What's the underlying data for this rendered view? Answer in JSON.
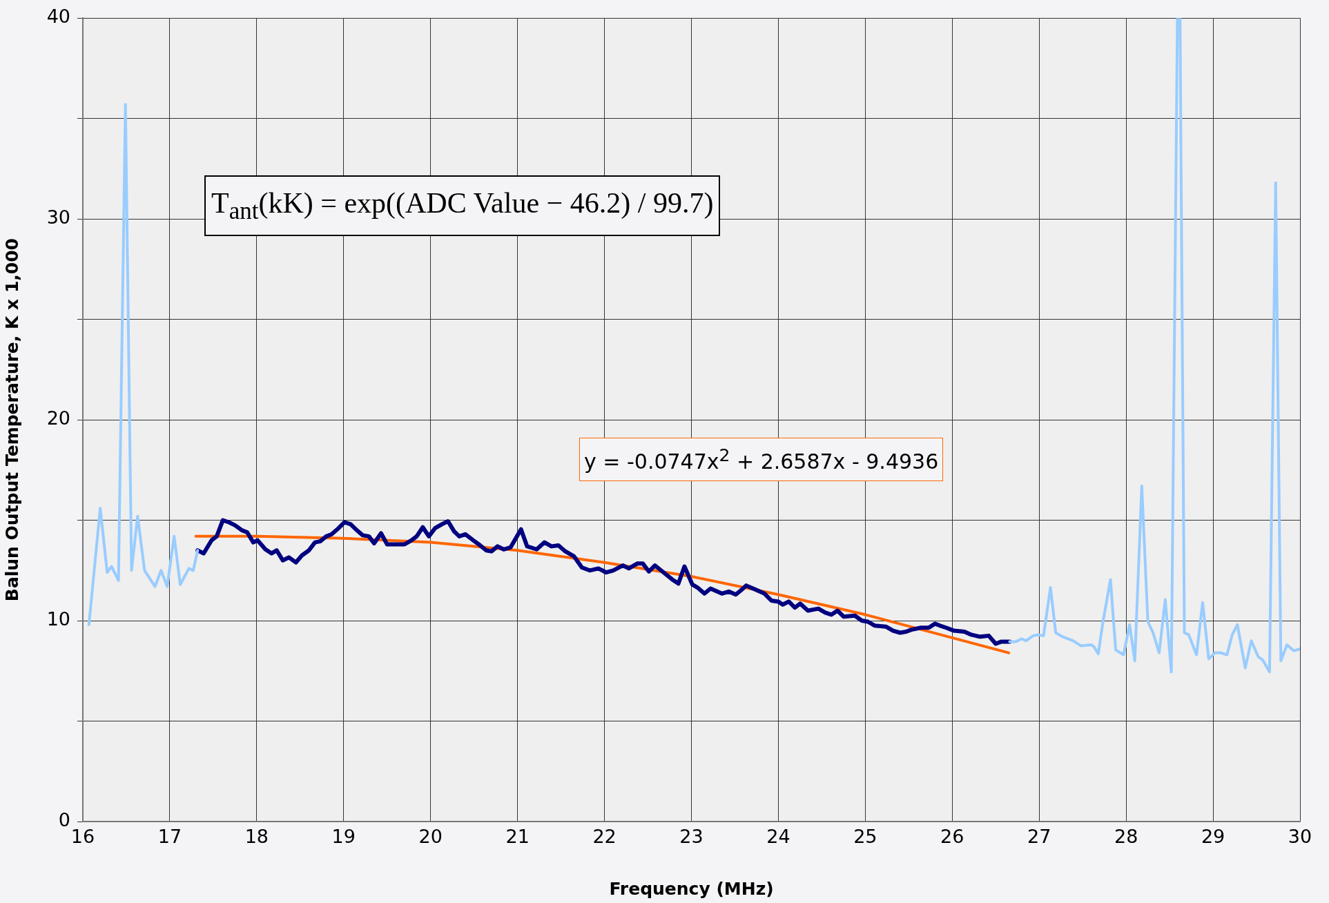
{
  "chart_data": {
    "type": "line",
    "xlabel": "Frequency (MHz)",
    "ylabel": "Balun Output Temperature, K x 1,000",
    "xlim": [
      16,
      30
    ],
    "xticks": [
      16,
      17,
      18,
      19,
      20,
      21,
      22,
      23,
      24,
      25,
      26,
      27,
      28,
      29,
      30
    ],
    "ylim": [
      0,
      40
    ],
    "yticks": [
      0,
      {
        "value": 5,
        "label": null
      },
      10,
      {
        "value": 15,
        "label": null
      },
      20,
      {
        "value": 25,
        "label": null
      },
      30,
      {
        "value": 35,
        "label": null
      },
      40
    ],
    "grid": true,
    "legend": false,
    "marker": "none",
    "line_style": "solid",
    "annotations": [
      "T$_{ant}$(kK) = exp((ADC Value − 46.2) / 99.7)",
      "y = -0.0747x$^{2}$ + 2.6587x - 9.4936"
    ],
    "series": [
      {
        "color": "#99ccff",
        "x": [
          16.07,
          16.2,
          16.28,
          16.33,
          16.41,
          16.49,
          16.56,
          16.63,
          16.71,
          16.83,
          16.9,
          16.97,
          17.05,
          17.12,
          17.22,
          17.27,
          17.32,
          17.33,
          26.65,
          26.66,
          26.73,
          26.8,
          26.85,
          26.93,
          26.99,
          27.05,
          27.13,
          27.19,
          27.27,
          27.39,
          27.48,
          27.6,
          27.63,
          27.68,
          27.73,
          27.82,
          27.88,
          27.97,
          28.04,
          28.1,
          28.18,
          28.25,
          28.31,
          28.38,
          28.45,
          28.52,
          28.59,
          28.62,
          28.67,
          28.72,
          28.81,
          28.88,
          28.95,
          29.02,
          29.09,
          29.16,
          29.22,
          29.28,
          29.37,
          29.44,
          29.52,
          29.57,
          29.65,
          29.72,
          29.78,
          29.85,
          29.93,
          30.0
        ],
        "values": [
          9.8,
          15.6,
          12.4,
          12.7,
          12.0,
          35.7,
          12.5,
          15.2,
          12.5,
          11.7,
          12.5,
          11.7,
          14.2,
          11.8,
          12.6,
          12.5,
          13.5,
          null,
          null,
          8.95,
          8.95,
          9.1,
          9.0,
          9.25,
          9.3,
          9.25,
          11.65,
          9.4,
          9.2,
          9.0,
          8.75,
          8.8,
          8.7,
          8.35,
          9.85,
          12.05,
          8.55,
          8.3,
          9.8,
          8.0,
          16.7,
          9.95,
          9.4,
          8.4,
          11.05,
          7.45,
          40,
          40,
          9.4,
          9.3,
          8.3,
          10.9,
          8.1,
          8.4,
          8.4,
          8.3,
          9.3,
          9.8,
          7.65,
          9.0,
          8.2,
          8.05,
          7.45,
          31.8,
          8.0,
          8.8,
          8.5,
          8.6
        ]
      },
      {
        "color": "#000080",
        "x": [
          17.32,
          17.39,
          17.48,
          17.54,
          17.61,
          17.68,
          17.75,
          17.83,
          17.89,
          17.96,
          18.01,
          18.1,
          18.17,
          18.23,
          18.3,
          18.37,
          18.45,
          18.52,
          18.6,
          18.67,
          18.73,
          18.8,
          18.86,
          18.94,
          19.01,
          19.08,
          19.14,
          19.22,
          19.29,
          19.35,
          19.43,
          19.5,
          19.6,
          19.7,
          19.78,
          19.84,
          19.91,
          19.98,
          20.05,
          20.13,
          20.2,
          20.27,
          20.33,
          20.4,
          20.49,
          20.57,
          20.64,
          20.7,
          20.77,
          20.84,
          20.92,
          21.04,
          21.11,
          21.22,
          21.31,
          21.39,
          21.47,
          21.55,
          21.65,
          21.74,
          21.83,
          21.93,
          22.02,
          22.1,
          22.21,
          22.28,
          22.38,
          22.44,
          22.51,
          22.58,
          22.68,
          22.78,
          22.85,
          22.92,
          23.01,
          23.07,
          23.15,
          23.22,
          23.35,
          23.43,
          23.51,
          23.58,
          23.63,
          23.71,
          23.84,
          23.92,
          24.0,
          24.05,
          24.12,
          24.19,
          24.25,
          24.34,
          24.46,
          24.54,
          24.61,
          24.68,
          24.75,
          24.88,
          24.96,
          25.03,
          25.11,
          25.24,
          25.32,
          25.4,
          25.47,
          25.53,
          25.64,
          25.73,
          25.8,
          25.86,
          25.93,
          26.02,
          26.14,
          26.22,
          26.32,
          26.42,
          26.5,
          26.56,
          26.66
        ],
        "values": [
          13.5,
          13.35,
          14.0,
          14.2,
          15.0,
          14.9,
          14.75,
          14.5,
          14.4,
          13.9,
          14.0,
          13.55,
          13.35,
          13.5,
          13.0,
          13.15,
          12.9,
          13.25,
          13.5,
          13.9,
          13.95,
          14.2,
          14.3,
          14.6,
          14.9,
          14.8,
          14.55,
          14.25,
          14.2,
          13.85,
          14.35,
          13.8,
          13.8,
          13.8,
          14.0,
          14.2,
          14.65,
          14.2,
          14.6,
          14.8,
          14.95,
          14.45,
          14.2,
          14.3,
          14.0,
          13.75,
          13.5,
          13.45,
          13.7,
          13.55,
          13.65,
          14.55,
          13.7,
          13.55,
          13.9,
          13.7,
          13.75,
          13.45,
          13.2,
          12.65,
          12.5,
          12.6,
          12.4,
          12.5,
          12.75,
          12.6,
          12.85,
          12.85,
          12.45,
          12.75,
          12.4,
          12.05,
          11.85,
          12.7,
          11.8,
          11.65,
          11.35,
          11.6,
          11.35,
          11.45,
          11.3,
          11.55,
          11.75,
          11.6,
          11.35,
          11.0,
          10.95,
          10.8,
          10.95,
          10.65,
          10.85,
          10.5,
          10.6,
          10.4,
          10.3,
          10.5,
          10.2,
          10.25,
          10.0,
          9.95,
          9.75,
          9.7,
          9.5,
          9.4,
          9.45,
          9.55,
          9.65,
          9.65,
          9.85,
          9.75,
          9.65,
          9.5,
          9.45,
          9.3,
          9.2,
          9.25,
          8.85,
          8.95,
          8.95
        ]
      },
      {
        "color": "#ff6600",
        "x": [
          17.3,
          18,
          19,
          20,
          21,
          22,
          23,
          24,
          25,
          26.65
        ],
        "values": [
          14.2,
          14.2,
          14.1,
          13.9,
          13.5,
          12.9,
          12.2,
          11.3,
          10.3,
          8.4
        ]
      }
    ]
  }
}
